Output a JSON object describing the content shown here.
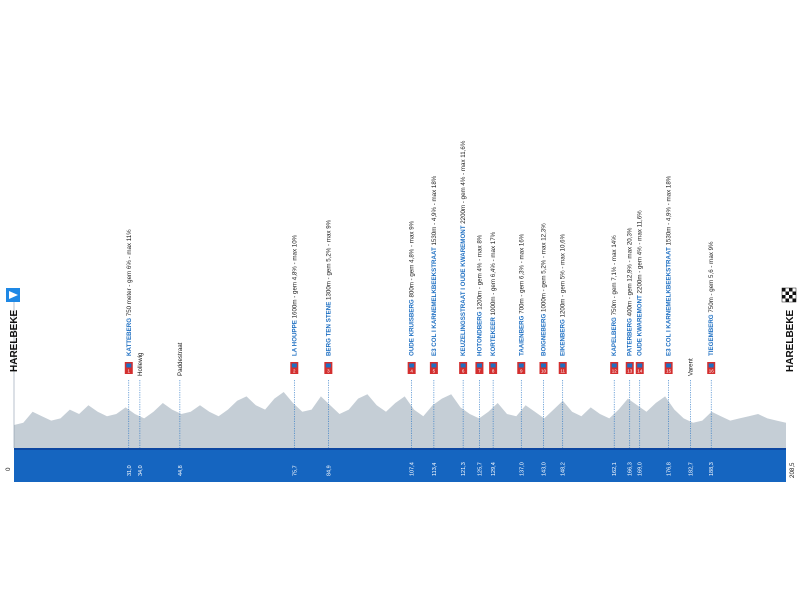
{
  "start": {
    "name": "HARELBEKE",
    "km": "0",
    "flag_color": "#1e88e5"
  },
  "finish": {
    "name": "HARELBEKE",
    "km": "208,5"
  },
  "colors": {
    "profile_fill": "#c5ced6",
    "base_band": "#1565c0",
    "base_band_top": "#0d47a1",
    "climb_text": "#1e6fc2",
    "marker_red": "#d32f2f",
    "marker_blue": "#1e6fc2"
  },
  "climbs": [
    {
      "num": "1",
      "name": "KATTEBERG",
      "stats": "750 meter - gem 6% - max 11%",
      "km": "31,0"
    },
    {
      "num": "2",
      "name": "LA HOUPPE",
      "stats": "1600m - gem 4,8% - max 10%",
      "km": "75,7"
    },
    {
      "num": "3",
      "name": "BERG TEN STENE",
      "stats": "1300m - gem 5,2% - max 9%",
      "km": "84,9"
    },
    {
      "num": "4",
      "name": "OUDE KRUISBERG",
      "stats": "800m - gem 4,8% - max 9%",
      "km": "107,4"
    },
    {
      "num": "5",
      "name": "E3 COL I KARNEMELKBEEKSTRAAT",
      "stats": "1530m - 4,9% - max 18%",
      "km": "113,4"
    },
    {
      "num": "6",
      "name": "KEUZELINGSSTRAAT I OUDE KWAREMONT",
      "stats": "2200m - gem 4% - max 11,6%",
      "km": "121,3"
    },
    {
      "num": "7",
      "name": "HOTONDBERG",
      "stats": "1200m - gem 4% - max 8%",
      "km": "125,7"
    },
    {
      "num": "8",
      "name": "KORTEKEER",
      "stats": "1000m - gem 6,4% - max 17%",
      "km": "129,4"
    },
    {
      "num": "9",
      "name": "TAAIENBERG",
      "stats": "700m - gem 6,3% - max 16%",
      "km": "137,0"
    },
    {
      "num": "10",
      "name": "BOIGNEBERG",
      "stats": "1000m - gem 5,2% - max 12,3%",
      "km": "143,0"
    },
    {
      "num": "11",
      "name": "EIKENBERG",
      "stats": "1200m - gem 5% - max 10,6%",
      "km": "148,2"
    },
    {
      "num": "12",
      "name": "KAPELBERG",
      "stats": "750m - gem 7,1% - max 14%",
      "km": "162,1"
    },
    {
      "num": "13",
      "name": "PATERBERG",
      "stats": "400m - gem 12,9% - max 20,3%",
      "km": "166,3"
    },
    {
      "num": "14",
      "name": "OUDE KWAREMONT",
      "stats": "2200m - gem 4% - max 11,6%",
      "km": "169,0"
    },
    {
      "num": "15",
      "name": "E3 COL I KARNEMELKBEEKSTRAAT",
      "stats": "1530m - 4,9% - max 18%",
      "km": "176,8"
    },
    {
      "num": "16",
      "name": "TIEGEMBERG",
      "stats": "750m - gem 5,6 - max 9%",
      "km": "188,3"
    }
  ],
  "sectors": [
    {
      "name": "Hollewig",
      "km": "34,0"
    },
    {
      "name": "Paddestraat",
      "km": "44,8"
    },
    {
      "name": "Varent",
      "km": "182,7"
    }
  ],
  "profile_elevation": [
    0.25,
    0.3,
    0.55,
    0.45,
    0.35,
    0.4,
    0.6,
    0.5,
    0.7,
    0.55,
    0.45,
    0.5,
    0.65,
    0.5,
    0.4,
    0.55,
    0.75,
    0.6,
    0.5,
    0.55,
    0.7,
    0.55,
    0.45,
    0.6,
    0.8,
    0.9,
    0.7,
    0.6,
    0.85,
    1.0,
    0.75,
    0.55,
    0.6,
    0.9,
    0.7,
    0.5,
    0.6,
    0.85,
    0.95,
    0.7,
    0.55,
    0.75,
    0.9,
    0.6,
    0.45,
    0.7,
    0.85,
    0.95,
    0.65,
    0.5,
    0.4,
    0.55,
    0.75,
    0.5,
    0.45,
    0.7,
    0.55,
    0.4,
    0.6,
    0.8,
    0.55,
    0.45,
    0.65,
    0.5,
    0.4,
    0.6,
    0.85,
    0.7,
    0.55,
    0.75,
    0.9,
    0.6,
    0.4,
    0.3,
    0.35,
    0.55,
    0.45,
    0.35,
    0.4,
    0.45,
    0.5,
    0.4,
    0.35,
    0.3
  ]
}
